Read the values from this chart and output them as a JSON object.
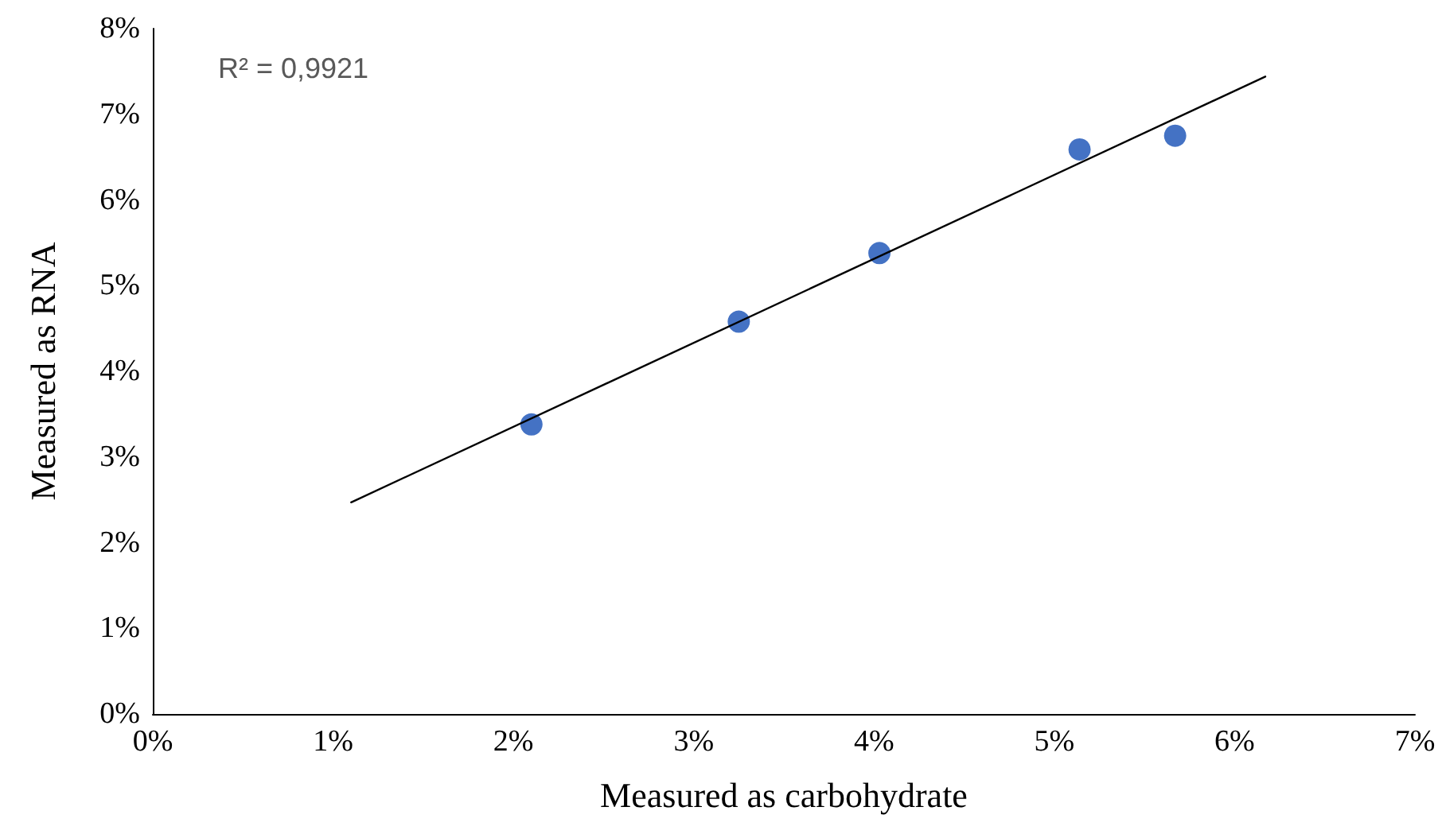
{
  "chart_data": {
    "type": "scatter",
    "xlabel": "Measured as carbohydrate",
    "ylabel": "Measured as RNA",
    "annotations": [
      "R² = 0,9921"
    ],
    "series": [
      {
        "color": "#4472c4",
        "marker": "circle",
        "x": [
          2.1,
          3.25,
          4.03,
          5.14,
          5.67
        ],
        "values": [
          3.38,
          4.58,
          5.38,
          6.59,
          6.75
        ]
      },
      {
        "type": "line",
        "color": "#000000",
        "marker": "none",
        "line_style": "solid",
        "x": [
          1.1,
          6.17
        ],
        "values": [
          2.47,
          7.44
        ]
      }
    ],
    "xlim": [
      0,
      7
    ],
    "ylim": [
      0,
      8
    ],
    "xticks": [
      {
        "value": 0,
        "label": "0%"
      },
      {
        "value": 1,
        "label": "1%"
      },
      {
        "value": 2,
        "label": "2%"
      },
      {
        "value": 3,
        "label": "3%"
      },
      {
        "value": 4,
        "label": "4%"
      },
      {
        "value": 5,
        "label": "5%"
      },
      {
        "value": 6,
        "label": "6%"
      },
      {
        "value": 7,
        "label": "7%"
      }
    ],
    "yticks": [
      {
        "value": 0,
        "label": "0%"
      },
      {
        "value": 1,
        "label": "1%"
      },
      {
        "value": 2,
        "label": "2%"
      },
      {
        "value": 3,
        "label": "3%"
      },
      {
        "value": 4,
        "label": "4%"
      },
      {
        "value": 5,
        "label": "5%"
      },
      {
        "value": 6,
        "label": "6%"
      },
      {
        "value": 7,
        "label": "7%"
      },
      {
        "value": 8,
        "label": "8%"
      }
    ],
    "grid": false
  }
}
